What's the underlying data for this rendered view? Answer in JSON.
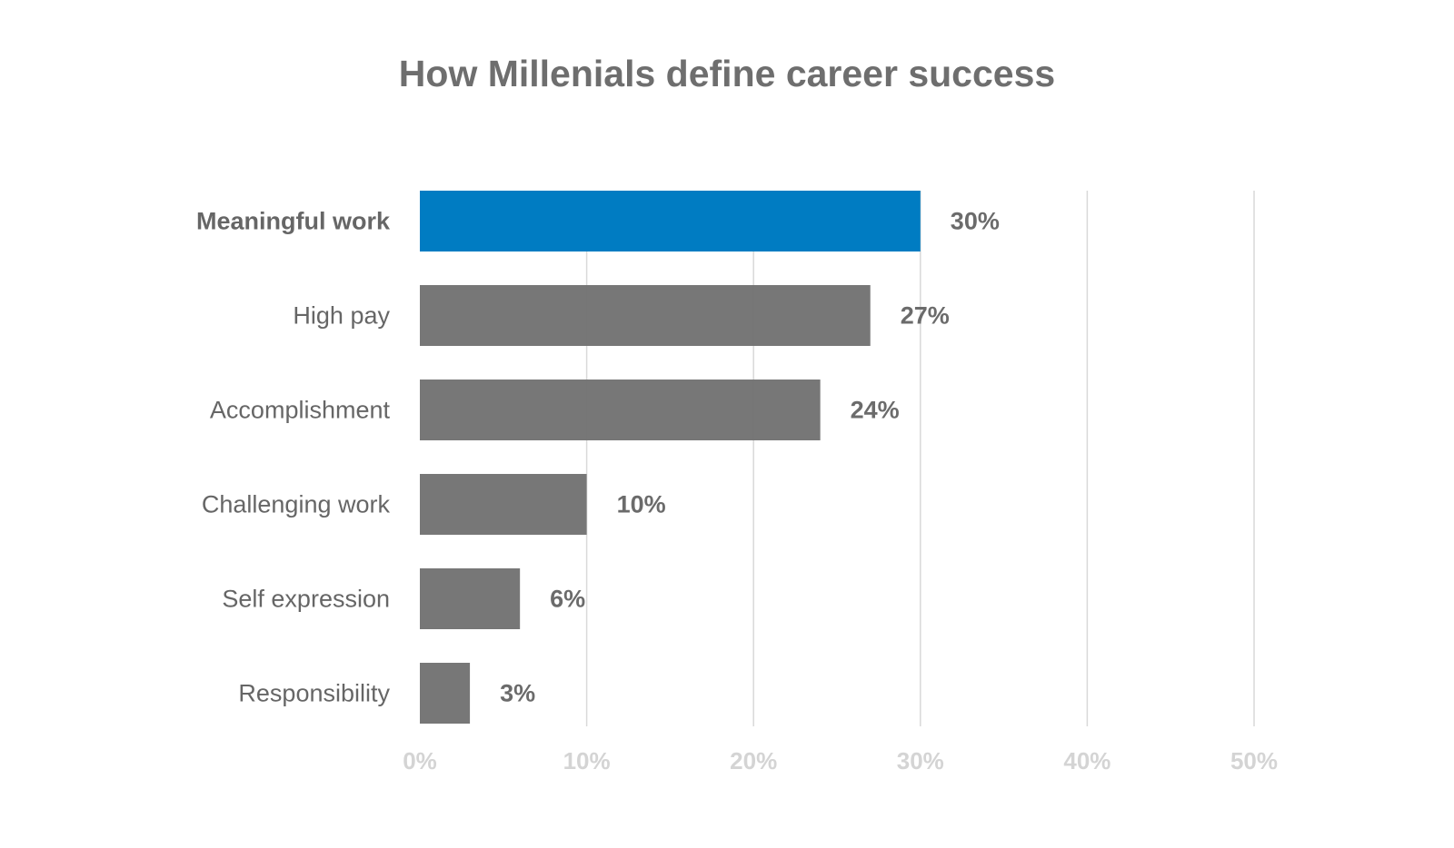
{
  "chart_data": {
    "type": "bar",
    "orientation": "horizontal",
    "title": "How Millenials define career success",
    "categories": [
      "Meaningful work",
      "High pay",
      "Accomplishment",
      "Challenging work",
      "Self expression",
      "Responsibility"
    ],
    "values": [
      30,
      27,
      24,
      10,
      6,
      3
    ],
    "value_labels": [
      "30%",
      "27%",
      "24%",
      "10%",
      "6%",
      "3%"
    ],
    "highlight_category": "Meaningful work",
    "xlim": [
      0,
      50
    ],
    "x_ticks": [
      0,
      10,
      20,
      30,
      40,
      50
    ],
    "x_tick_labels": [
      "0%",
      "10%",
      "20%",
      "30%",
      "40%",
      "50%"
    ],
    "xlabel": "",
    "ylabel": "",
    "grid": "vertical",
    "legend": "none",
    "colors": {
      "highlight_bar": "#007cc2",
      "bar": "#737373",
      "gridline": "#d9d9d9",
      "category_text": "#666666",
      "value_text": "#6b6b6b",
      "tick_text": "#d4d4d4",
      "title_text": "#6e6e6e"
    }
  }
}
